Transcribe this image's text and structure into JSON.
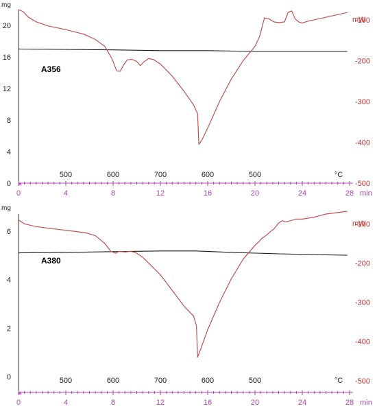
{
  "colors": {
    "mass": "#1a1a1a",
    "heat": "#c05050",
    "time_axis": "#b040b0",
    "left_axis": "#333333",
    "right_axis": "#c03030"
  },
  "chart_data": [
    {
      "type": "line",
      "sample": "A356",
      "time_unit": "min",
      "temp_unit": "°C",
      "left_unit": "mg",
      "right_unit": "mW",
      "xlim": [
        0,
        28
      ],
      "x_ticks": [
        0,
        4,
        8,
        12,
        16,
        20,
        24,
        28
      ],
      "x_tick_labels": [
        "0",
        "4",
        "8",
        "12",
        "16",
        "20",
        "24",
        "28"
      ],
      "temp_ticks": [
        {
          "time": 4,
          "label": "500"
        },
        {
          "time": 8,
          "label": "600"
        },
        {
          "time": 12,
          "label": "700"
        },
        {
          "time": 16,
          "label": "600"
        },
        {
          "time": 20,
          "label": "500"
        }
      ],
      "left_axis": {
        "min": 0,
        "max": 22,
        "ticks": [
          0,
          4,
          8,
          12,
          16,
          20
        ],
        "labels": [
          "0",
          "4",
          "8",
          "12",
          "16",
          "20"
        ]
      },
      "right_axis": {
        "min": -500,
        "max": -75,
        "ticks": [
          -500,
          -400,
          -300,
          -200,
          -100
        ],
        "labels": [
          "-500",
          "-400",
          "-300",
          "-200",
          "-100"
        ]
      },
      "series": [
        {
          "axis": "left",
          "color_key": "mass",
          "x": [
            0,
            8,
            12,
            16,
            20,
            24,
            27.8
          ],
          "y": [
            17.0,
            16.9,
            16.8,
            16.8,
            16.7,
            16.7,
            16.7
          ]
        },
        {
          "axis": "right",
          "color_key": "heat",
          "x": [
            0,
            0.4,
            0.8,
            1.5,
            2.5,
            4,
            5.5,
            6.5,
            7.3,
            7.9,
            8.3,
            8.6,
            8.9,
            9.2,
            9.6,
            10.0,
            10.3,
            10.6,
            11.0,
            11.4,
            12.0,
            13.0,
            14.0,
            14.8,
            15.15,
            15.25,
            15.5,
            16.0,
            17.0,
            18.0,
            19.0,
            20.0,
            20.4,
            20.8,
            21.2,
            21.6,
            22.0,
            22.5,
            22.8,
            23.1,
            23.4,
            23.7,
            24.0,
            24.5,
            25.5,
            27.8
          ],
          "y": [
            -75,
            -80,
            -93,
            -105,
            -115,
            -124,
            -135,
            -148,
            -165,
            -195,
            -225,
            -226,
            -210,
            -198,
            -197,
            -202,
            -212,
            -203,
            -195,
            -197,
            -208,
            -238,
            -275,
            -308,
            -330,
            -405,
            -395,
            -365,
            -300,
            -245,
            -200,
            -165,
            -140,
            -95,
            -98,
            -105,
            -107,
            -105,
            -82,
            -78,
            -98,
            -105,
            -108,
            -103,
            -97,
            -82
          ]
        }
      ]
    },
    {
      "type": "line",
      "sample": "A380",
      "time_unit": "min",
      "temp_unit": "°C",
      "left_unit": "mg",
      "right_unit": "mW",
      "xlim": [
        0,
        28
      ],
      "x_ticks": [
        0,
        4,
        8,
        12,
        16,
        20,
        24,
        28
      ],
      "x_tick_labels": [
        "0",
        "4",
        "8",
        "12",
        "16",
        "20",
        "24",
        "28"
      ],
      "temp_ticks": [
        {
          "time": 4,
          "label": "500"
        },
        {
          "time": 8,
          "label": "600"
        },
        {
          "time": 12,
          "label": "700"
        },
        {
          "time": 16,
          "label": "600"
        },
        {
          "time": 20,
          "label": "500"
        }
      ],
      "left_axis": {
        "min": -0.65,
        "max": 6.7,
        "ticks": [
          0,
          2,
          4,
          6
        ],
        "labels": [
          "0",
          "2",
          "4",
          "6"
        ]
      },
      "right_axis": {
        "min": -530,
        "max": -75,
        "ticks": [
          -500,
          -400,
          -300,
          -200,
          -100
        ],
        "labels": [
          "-500",
          "-400",
          "-300",
          "-200",
          "-100"
        ]
      },
      "series": [
        {
          "axis": "left",
          "color_key": "mass",
          "x": [
            0,
            4,
            8,
            12,
            15,
            18,
            22,
            27.8
          ],
          "y": [
            5.1,
            5.12,
            5.15,
            5.18,
            5.18,
            5.12,
            5.06,
            5.0
          ]
        },
        {
          "axis": "right",
          "color_key": "heat",
          "x": [
            0,
            0.5,
            1.5,
            3,
            4.5,
            5.7,
            6.5,
            7.3,
            7.8,
            8.2,
            8.5,
            9.0,
            9.5,
            10.0,
            10.5,
            11.0,
            12.0,
            13.0,
            14.0,
            14.8,
            15.05,
            15.15,
            15.4,
            16.0,
            17.0,
            18.0,
            19.0,
            20.0,
            20.6,
            21.0,
            21.3,
            21.6,
            22.0,
            22.3,
            22.6,
            23.0,
            23.5,
            24.0,
            25.0,
            26.0,
            27.8
          ],
          "y": [
            -90,
            -100,
            -107,
            -113,
            -118,
            -123,
            -130,
            -150,
            -170,
            -175,
            -170,
            -172,
            -170,
            -175,
            -185,
            -200,
            -230,
            -270,
            -310,
            -335,
            -360,
            -440,
            -420,
            -370,
            -300,
            -240,
            -190,
            -155,
            -137,
            -128,
            -120,
            -113,
            -98,
            -92,
            -95,
            -92,
            -88,
            -88,
            -83,
            -75,
            -68
          ]
        }
      ]
    }
  ]
}
